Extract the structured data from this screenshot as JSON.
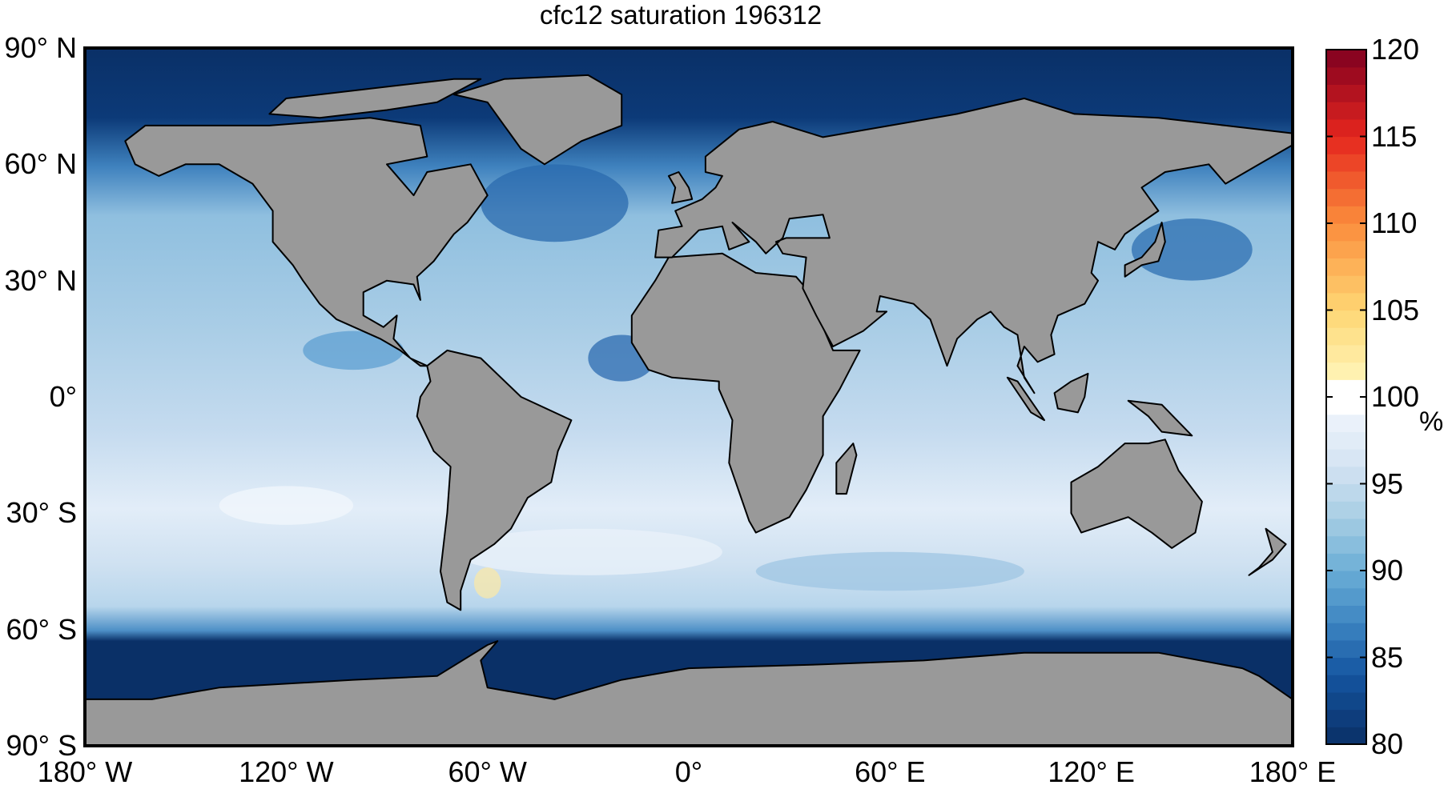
{
  "title": "cfc12 saturation 196312",
  "map": {
    "projection": "equirectangular",
    "lon_range": [
      -180,
      180
    ],
    "lat_range": [
      -90,
      90
    ],
    "land_color": "#999999",
    "lat_ticks": [
      {
        "value": 90,
        "label": "90° N"
      },
      {
        "value": 60,
        "label": "60° N"
      },
      {
        "value": 30,
        "label": "30° N"
      },
      {
        "value": 0,
        "label": "0°"
      },
      {
        "value": -30,
        "label": "30° S"
      },
      {
        "value": -60,
        "label": "60° S"
      },
      {
        "value": -90,
        "label": "90° S"
      }
    ],
    "lon_ticks": [
      {
        "value": -180,
        "label": "180° W"
      },
      {
        "value": -120,
        "label": "120° W"
      },
      {
        "value": -60,
        "label": "60° W"
      },
      {
        "value": 0,
        "label": "0°"
      },
      {
        "value": 60,
        "label": "60° E"
      },
      {
        "value": 120,
        "label": "120° E"
      },
      {
        "value": 180,
        "label": "180° E"
      }
    ]
  },
  "colorbar": {
    "range": [
      80,
      120
    ],
    "levels": 40,
    "unit": "%",
    "ticks": [
      {
        "value": 120,
        "label": "120"
      },
      {
        "value": 115,
        "label": "115"
      },
      {
        "value": 110,
        "label": "110"
      },
      {
        "value": 105,
        "label": "105"
      },
      {
        "value": 100,
        "label": "100"
      },
      {
        "value": 95,
        "label": "95"
      },
      {
        "value": 90,
        "label": "90"
      },
      {
        "value": 85,
        "label": "85"
      },
      {
        "value": 80,
        "label": "80"
      }
    ],
    "colormap": [
      {
        "value": 80,
        "color": "#0a2f66"
      },
      {
        "value": 84,
        "color": "#1455a0"
      },
      {
        "value": 87,
        "color": "#3d85c1"
      },
      {
        "value": 90,
        "color": "#6baed6"
      },
      {
        "value": 93,
        "color": "#a6cde3"
      },
      {
        "value": 96,
        "color": "#d3e3f3"
      },
      {
        "value": 99,
        "color": "#eef4fb"
      },
      {
        "value": 99.01,
        "color": "#ffffff"
      },
      {
        "value": 101,
        "color": "#ffffff"
      },
      {
        "value": 101.01,
        "color": "#fff5b8"
      },
      {
        "value": 105,
        "color": "#fed673"
      },
      {
        "value": 110,
        "color": "#fb8d3c"
      },
      {
        "value": 115,
        "color": "#e5261e"
      },
      {
        "value": 120,
        "color": "#800020"
      }
    ]
  }
}
